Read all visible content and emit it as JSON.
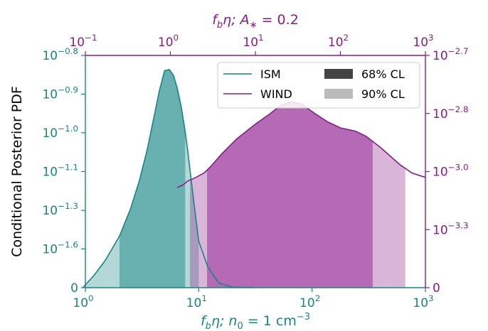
{
  "chart_data": {
    "type": "area",
    "colors": {
      "ism": "#178585",
      "wind": "#8b1a8b",
      "legend_dark": "#444444",
      "legend_light": "#bbbbbb"
    },
    "ylabel": "Conditional Posterior PDF",
    "bottom_axis": {
      "label_parts": [
        "f",
        "b",
        "η; n",
        "0",
        " = 1 cm",
        "−3"
      ],
      "scale": "log",
      "range": [
        1,
        1000
      ],
      "ticks": [
        {
          "value": 1,
          "base": "10",
          "exp": "0"
        },
        {
          "value": 10,
          "base": "10",
          "exp": "1"
        },
        {
          "value": 100,
          "base": "10",
          "exp": "2"
        },
        {
          "value": 1000,
          "base": "10",
          "exp": "3"
        }
      ]
    },
    "top_axis": {
      "label_parts": [
        "f",
        "b",
        "η; A",
        "∗",
        " = 0.2"
      ],
      "scale": "log",
      "range": [
        0.1,
        1000
      ],
      "ticks": [
        {
          "value": 0.1,
          "base": "10",
          "exp": "−1"
        },
        {
          "value": 1,
          "base": "10",
          "exp": "0"
        },
        {
          "value": 10,
          "base": "10",
          "exp": "1"
        },
        {
          "value": 100,
          "base": "10",
          "exp": "2"
        },
        {
          "value": 1000,
          "base": "10",
          "exp": "3"
        }
      ]
    },
    "left_axis": {
      "ticks": [
        {
          "frac": 0.0,
          "label": "0",
          "base": "",
          "exp": ""
        },
        {
          "frac": 0.167,
          "label": "",
          "base": "10",
          "exp": "−1.6"
        },
        {
          "frac": 0.333,
          "label": "",
          "base": "10",
          "exp": "−1.3"
        },
        {
          "frac": 0.5,
          "label": "",
          "base": "10",
          "exp": "−1.1"
        },
        {
          "frac": 0.667,
          "label": "",
          "base": "10",
          "exp": "−1.0"
        },
        {
          "frac": 0.833,
          "label": "",
          "base": "10",
          "exp": "−0.9"
        },
        {
          "frac": 1.0,
          "label": "",
          "base": "10",
          "exp": "−0.8"
        }
      ]
    },
    "right_axis": {
      "ticks": [
        {
          "frac": 0.0,
          "label": "0",
          "base": "",
          "exp": ""
        },
        {
          "frac": 0.25,
          "label": "",
          "base": "10",
          "exp": "−3.3"
        },
        {
          "frac": 0.5,
          "label": "",
          "base": "10",
          "exp": "−3.0"
        },
        {
          "frac": 0.75,
          "label": "",
          "base": "10",
          "exp": "−2.8"
        },
        {
          "frac": 1.0,
          "label": "",
          "base": "10",
          "exp": "−2.7"
        }
      ]
    },
    "legend": {
      "placement": "top-right",
      "entries": [
        {
          "label": "ISM",
          "kind": "line",
          "color_key": "ism"
        },
        {
          "label": "68% CL",
          "kind": "patch",
          "color_key": "legend_dark"
        },
        {
          "label": "WIND",
          "kind": "line",
          "color_key": "wind"
        },
        {
          "label": "90% CL",
          "kind": "patch",
          "color_key": "legend_light"
        }
      ]
    },
    "series": [
      {
        "name": "ISM",
        "axis": "bottom-left",
        "x": [
          0.95,
          1.2,
          1.5,
          2.0,
          2.5,
          3.0,
          3.5,
          4.0,
          4.5,
          5.0,
          5.5,
          6.0,
          6.5,
          7.0,
          7.5,
          8.0,
          9.0,
          10,
          12,
          15,
          20,
          30
        ],
        "y": [
          0.0,
          0.055,
          0.118,
          0.222,
          0.339,
          0.462,
          0.591,
          0.727,
          0.849,
          0.934,
          0.939,
          0.913,
          0.854,
          0.78,
          0.69,
          0.59,
          0.38,
          0.2,
          0.09,
          0.02,
          0.002,
          0.0
        ],
        "cl68": [
          2.0,
          7.6
        ],
        "cl90": [
          0.95,
          10.0
        ]
      },
      {
        "name": "WIND",
        "axis": "top-right",
        "x": [
          1.2,
          1.4,
          1.6,
          2.0,
          2.5,
          3.0,
          4.0,
          6.0,
          10,
          15,
          20,
          27,
          35,
          50,
          70,
          100,
          150,
          200,
          300,
          500,
          700,
          1000
        ],
        "y": [
          0.431,
          0.442,
          0.459,
          0.475,
          0.494,
          0.523,
          0.575,
          0.64,
          0.704,
          0.75,
          0.786,
          0.8,
          0.79,
          0.75,
          0.715,
          0.688,
          0.674,
          0.652,
          0.602,
          0.53,
          0.493,
          0.475
        ],
        "cl68": [
          2.7,
          240
        ],
        "cl90": [
          1.7,
          580
        ]
      }
    ]
  }
}
